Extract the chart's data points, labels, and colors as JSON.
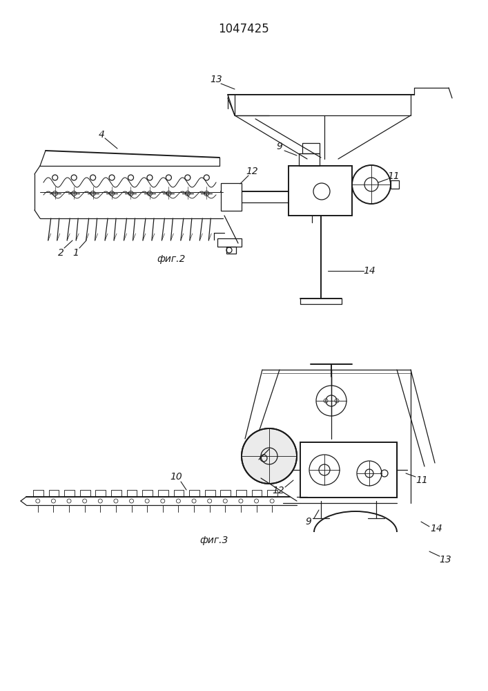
{
  "title": "1047425",
  "fig1_label": "фиг.2",
  "fig2_label": "фиг.3",
  "background_color": "#ffffff",
  "line_color": "#1a1a1a",
  "line_width": 0.9,
  "lw_thick": 1.4
}
